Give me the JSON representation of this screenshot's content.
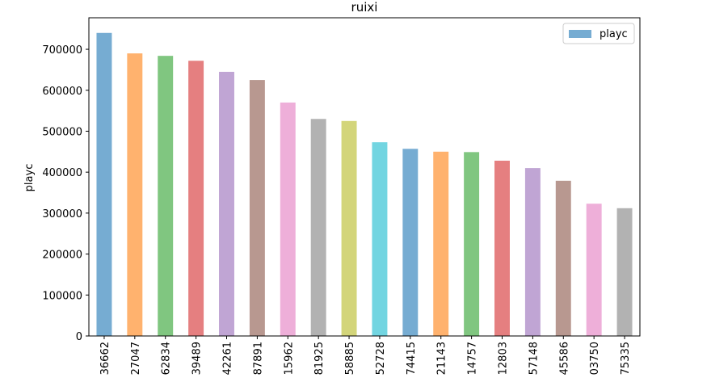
{
  "chart_data": {
    "type": "bar",
    "title": "ruixi",
    "ylabel": "playc",
    "categories": [
      "36662",
      "27047",
      "62834",
      "39489",
      "42261",
      "87891",
      "15962",
      "81925",
      "58885",
      "52728",
      "74415",
      "21143",
      "14757",
      "12803",
      "57148",
      "45586",
      "03750",
      "75335"
    ],
    "series": [
      {
        "name": "playc",
        "colors": [
          "#76acd2",
          "#ffb26e",
          "#80c680",
          "#e57f80",
          "#c0a5d4",
          "#b89890",
          "#eeafd9",
          "#b2b2b2",
          "#d3d57a",
          "#72d5e1",
          "#76acd2",
          "#ffb26e",
          "#80c680",
          "#e57f80",
          "#c0a5d4",
          "#b89890",
          "#eeafd9",
          "#b2b2b2"
        ],
        "values": [
          740000,
          690000,
          684000,
          672000,
          645000,
          625000,
          570000,
          530000,
          525000,
          473000,
          457000,
          450000,
          449000,
          428000,
          410000,
          379000,
          323000,
          312000
        ]
      }
    ],
    "ylim": [
      0,
      777000
    ],
    "yticks": [
      0,
      100000,
      200000,
      300000,
      400000,
      500000,
      600000,
      700000
    ],
    "legend": "upper right"
  }
}
